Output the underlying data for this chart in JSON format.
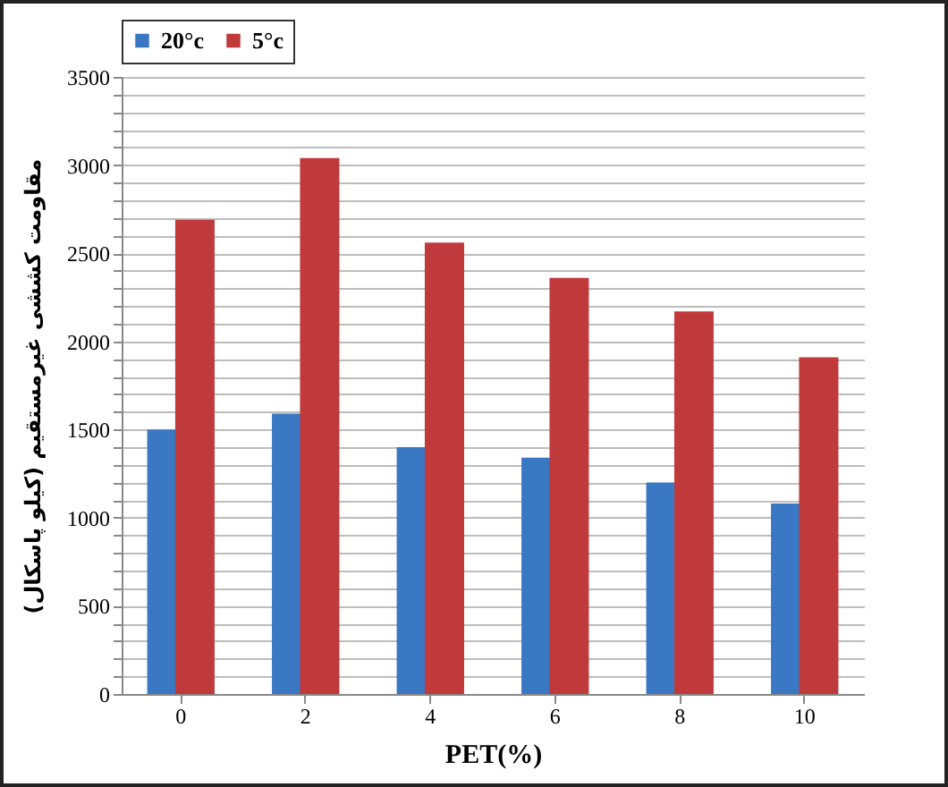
{
  "chart_data": {
    "type": "bar",
    "xlabel": "PET(%)",
    "ylabel": "مقاومت کششی غیرمستقیم (کیلو پاسکال)",
    "categories": [
      "0",
      "2",
      "4",
      "6",
      "8",
      "10"
    ],
    "series": [
      {
        "name": "20°c",
        "color": "#3a78c3",
        "values": [
          1500,
          1590,
          1400,
          1340,
          1200,
          1080
        ]
      },
      {
        "name": "5°c",
        "color": "#c0393b",
        "values": [
          2690,
          3040,
          2560,
          2360,
          2170,
          1910
        ]
      }
    ],
    "ylim": [
      0,
      3500
    ],
    "yticks": [
      0,
      {
        "value": 100,
        "label": null
      },
      {
        "value": 200,
        "label": null
      },
      {
        "value": 300,
        "label": null
      },
      {
        "value": 400,
        "label": null
      },
      500,
      {
        "value": 600,
        "label": null
      },
      {
        "value": 700,
        "label": null
      },
      {
        "value": 800,
        "label": null
      },
      {
        "value": 900,
        "label": null
      },
      1000,
      {
        "value": 1100,
        "label": null
      },
      {
        "value": 1200,
        "label": null
      },
      {
        "value": 1300,
        "label": null
      },
      {
        "value": 1400,
        "label": null
      },
      1500,
      {
        "value": 1600,
        "label": null
      },
      {
        "value": 1700,
        "label": null
      },
      {
        "value": 1800,
        "label": null
      },
      {
        "value": 1900,
        "label": null
      },
      2000,
      {
        "value": 2100,
        "label": null
      },
      {
        "value": 2200,
        "label": null
      },
      {
        "value": 2300,
        "label": null
      },
      {
        "value": 2400,
        "label": null
      },
      2500,
      {
        "value": 2600,
        "label": null
      },
      {
        "value": 2700,
        "label": null
      },
      {
        "value": 2800,
        "label": null
      },
      {
        "value": 2900,
        "label": null
      },
      3000,
      {
        "value": 3100,
        "label": null
      },
      {
        "value": 3200,
        "label": null
      },
      {
        "value": 3300,
        "label": null
      },
      {
        "value": 3400,
        "label": null
      },
      3500
    ],
    "grid": "y",
    "legend": "top"
  }
}
